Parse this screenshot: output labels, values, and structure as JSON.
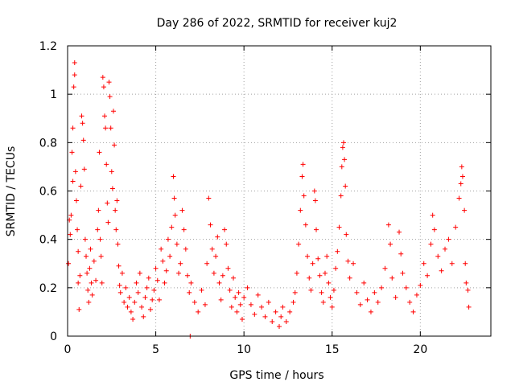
{
  "chart_data": {
    "type": "scatter",
    "title": "Day 286 of 2022, SRMTID for receiver kuj2",
    "xlabel": "GPS time / hours",
    "ylabel": "SRMTID / TECUs",
    "xlim": [
      0,
      24
    ],
    "ylim": [
      0,
      1.2
    ],
    "xticks": [
      0,
      5,
      10,
      15,
      20
    ],
    "yticks": [
      0,
      0.2,
      0.4,
      0.6,
      0.8,
      1.0,
      1.2
    ],
    "xtick_labels": [
      "0",
      "5",
      "10",
      "15",
      "20"
    ],
    "ytick_labels": [
      "0",
      "0.2",
      "0.4",
      "0.6",
      "0.8",
      "1",
      "1.2"
    ],
    "grid": true,
    "marker": "+",
    "color": "#ff0000",
    "series": [
      {
        "name": "kuj2",
        "points": [
          [
            0.05,
            0.3
          ],
          [
            0.1,
            0.48
          ],
          [
            0.15,
            0.42
          ],
          [
            0.2,
            0.5
          ],
          [
            0.25,
            0.76
          ],
          [
            0.3,
            0.86
          ],
          [
            0.3,
            0.64
          ],
          [
            0.35,
            1.03
          ],
          [
            0.4,
            1.08
          ],
          [
            0.4,
            1.13
          ],
          [
            0.45,
            0.68
          ],
          [
            0.5,
            0.56
          ],
          [
            0.55,
            0.44
          ],
          [
            0.6,
            0.22
          ],
          [
            0.6,
            0.35
          ],
          [
            0.65,
            0.11
          ],
          [
            0.7,
            0.25
          ],
          [
            0.75,
            0.62
          ],
          [
            0.8,
            0.91
          ],
          [
            0.85,
            0.88
          ],
          [
            0.9,
            0.81
          ],
          [
            0.95,
            0.69
          ],
          [
            1.0,
            0.4
          ],
          [
            1.05,
            0.33
          ],
          [
            1.1,
            0.26
          ],
          [
            1.15,
            0.19
          ],
          [
            1.2,
            0.14
          ],
          [
            1.25,
            0.28
          ],
          [
            1.3,
            0.36
          ],
          [
            1.35,
            0.22
          ],
          [
            1.4,
            0.17
          ],
          [
            1.5,
            0.31
          ],
          [
            1.6,
            0.23
          ],
          [
            1.7,
            0.44
          ],
          [
            1.75,
            0.52
          ],
          [
            1.8,
            0.76
          ],
          [
            1.85,
            0.4
          ],
          [
            1.9,
            0.33
          ],
          [
            1.95,
            0.22
          ],
          [
            2.0,
            1.07
          ],
          [
            2.05,
            1.03
          ],
          [
            2.1,
            0.91
          ],
          [
            2.15,
            0.86
          ],
          [
            2.2,
            0.71
          ],
          [
            2.25,
            0.55
          ],
          [
            2.3,
            0.47
          ],
          [
            2.35,
            1.05
          ],
          [
            2.4,
            0.99
          ],
          [
            2.45,
            0.86
          ],
          [
            2.5,
            0.68
          ],
          [
            2.55,
            0.61
          ],
          [
            2.6,
            0.93
          ],
          [
            2.65,
            0.79
          ],
          [
            2.7,
            0.52
          ],
          [
            2.75,
            0.44
          ],
          [
            2.8,
            0.56
          ],
          [
            2.85,
            0.38
          ],
          [
            2.9,
            0.29
          ],
          [
            2.95,
            0.21
          ],
          [
            3.0,
            0.18
          ],
          [
            3.1,
            0.26
          ],
          [
            3.2,
            0.14
          ],
          [
            3.3,
            0.2
          ],
          [
            3.4,
            0.12
          ],
          [
            3.5,
            0.16
          ],
          [
            3.6,
            0.1
          ],
          [
            3.7,
            0.07
          ],
          [
            3.8,
            0.14
          ],
          [
            3.9,
            0.22
          ],
          [
            4.0,
            0.18
          ],
          [
            4.1,
            0.26
          ],
          [
            4.2,
            0.12
          ],
          [
            4.3,
            0.08
          ],
          [
            4.4,
            0.16
          ],
          [
            4.5,
            0.2
          ],
          [
            4.6,
            0.24
          ],
          [
            4.7,
            0.11
          ],
          [
            4.8,
            0.15
          ],
          [
            4.9,
            0.19
          ],
          [
            5.0,
            0.28
          ],
          [
            5.1,
            0.23
          ],
          [
            5.2,
            0.15
          ],
          [
            5.3,
            0.36
          ],
          [
            5.4,
            0.31
          ],
          [
            5.5,
            0.22
          ],
          [
            5.6,
            0.27
          ],
          [
            5.7,
            0.4
          ],
          [
            5.8,
            0.33
          ],
          [
            5.9,
            0.45
          ],
          [
            6.0,
            0.66
          ],
          [
            6.05,
            0.57
          ],
          [
            6.1,
            0.5
          ],
          [
            6.2,
            0.38
          ],
          [
            6.3,
            0.26
          ],
          [
            6.4,
            0.3
          ],
          [
            6.5,
            0.52
          ],
          [
            6.6,
            0.44
          ],
          [
            6.7,
            0.36
          ],
          [
            6.8,
            0.25
          ],
          [
            6.9,
            0.18
          ],
          [
            6.95,
            0.0
          ],
          [
            7.0,
            0.22
          ],
          [
            7.2,
            0.14
          ],
          [
            7.4,
            0.1
          ],
          [
            7.6,
            0.19
          ],
          [
            7.8,
            0.13
          ],
          [
            7.9,
            0.3
          ],
          [
            8.0,
            0.57
          ],
          [
            8.1,
            0.46
          ],
          [
            8.2,
            0.36
          ],
          [
            8.3,
            0.26
          ],
          [
            8.4,
            0.33
          ],
          [
            8.5,
            0.41
          ],
          [
            8.6,
            0.22
          ],
          [
            8.7,
            0.15
          ],
          [
            8.8,
            0.25
          ],
          [
            8.9,
            0.44
          ],
          [
            9.0,
            0.38
          ],
          [
            9.1,
            0.28
          ],
          [
            9.2,
            0.19
          ],
          [
            9.3,
            0.12
          ],
          [
            9.4,
            0.24
          ],
          [
            9.5,
            0.16
          ],
          [
            9.6,
            0.1
          ],
          [
            9.7,
            0.18
          ],
          [
            9.8,
            0.13
          ],
          [
            9.9,
            0.07
          ],
          [
            10.0,
            0.16
          ],
          [
            10.2,
            0.2
          ],
          [
            10.4,
            0.13
          ],
          [
            10.6,
            0.09
          ],
          [
            10.8,
            0.17
          ],
          [
            11.0,
            0.12
          ],
          [
            11.2,
            0.08
          ],
          [
            11.4,
            0.14
          ],
          [
            11.6,
            0.06
          ],
          [
            11.8,
            0.1
          ],
          [
            12.0,
            0.04
          ],
          [
            12.1,
            0.08
          ],
          [
            12.2,
            0.12
          ],
          [
            12.4,
            0.06
          ],
          [
            12.6,
            0.1
          ],
          [
            12.8,
            0.14
          ],
          [
            12.9,
            0.18
          ],
          [
            13.0,
            0.26
          ],
          [
            13.1,
            0.38
          ],
          [
            13.2,
            0.52
          ],
          [
            13.3,
            0.66
          ],
          [
            13.35,
            0.71
          ],
          [
            13.4,
            0.58
          ],
          [
            13.5,
            0.46
          ],
          [
            13.6,
            0.33
          ],
          [
            13.7,
            0.24
          ],
          [
            13.8,
            0.19
          ],
          [
            13.9,
            0.3
          ],
          [
            14.0,
            0.6
          ],
          [
            14.05,
            0.56
          ],
          [
            14.1,
            0.44
          ],
          [
            14.2,
            0.32
          ],
          [
            14.3,
            0.25
          ],
          [
            14.4,
            0.18
          ],
          [
            14.5,
            0.14
          ],
          [
            14.6,
            0.26
          ],
          [
            14.7,
            0.33
          ],
          [
            14.8,
            0.22
          ],
          [
            14.9,
            0.16
          ],
          [
            15.0,
            0.12
          ],
          [
            15.1,
            0.19
          ],
          [
            15.2,
            0.28
          ],
          [
            15.3,
            0.35
          ],
          [
            15.4,
            0.45
          ],
          [
            15.5,
            0.58
          ],
          [
            15.55,
            0.7
          ],
          [
            15.6,
            0.78
          ],
          [
            15.65,
            0.8
          ],
          [
            15.7,
            0.73
          ],
          [
            15.75,
            0.62
          ],
          [
            15.8,
            0.42
          ],
          [
            15.9,
            0.31
          ],
          [
            16.0,
            0.24
          ],
          [
            16.2,
            0.3
          ],
          [
            16.4,
            0.18
          ],
          [
            16.6,
            0.13
          ],
          [
            16.8,
            0.22
          ],
          [
            17.0,
            0.15
          ],
          [
            17.2,
            0.1
          ],
          [
            17.4,
            0.18
          ],
          [
            17.6,
            0.14
          ],
          [
            17.8,
            0.2
          ],
          [
            18.0,
            0.28
          ],
          [
            18.2,
            0.46
          ],
          [
            18.3,
            0.38
          ],
          [
            18.4,
            0.24
          ],
          [
            18.6,
            0.16
          ],
          [
            18.8,
            0.43
          ],
          [
            18.9,
            0.34
          ],
          [
            19.0,
            0.26
          ],
          [
            19.2,
            0.2
          ],
          [
            19.4,
            0.14
          ],
          [
            19.6,
            0.1
          ],
          [
            19.8,
            0.17
          ],
          [
            20.0,
            0.21
          ],
          [
            20.2,
            0.3
          ],
          [
            20.4,
            0.25
          ],
          [
            20.6,
            0.38
          ],
          [
            20.7,
            0.5
          ],
          [
            20.8,
            0.44
          ],
          [
            21.0,
            0.33
          ],
          [
            21.2,
            0.27
          ],
          [
            21.4,
            0.36
          ],
          [
            21.6,
            0.4
          ],
          [
            21.8,
            0.3
          ],
          [
            22.0,
            0.45
          ],
          [
            22.2,
            0.57
          ],
          [
            22.3,
            0.63
          ],
          [
            22.35,
            0.7
          ],
          [
            22.4,
            0.66
          ],
          [
            22.5,
            0.52
          ],
          [
            22.55,
            0.3
          ],
          [
            22.6,
            0.22
          ],
          [
            22.7,
            0.19
          ],
          [
            22.75,
            0.12
          ]
        ]
      }
    ]
  }
}
